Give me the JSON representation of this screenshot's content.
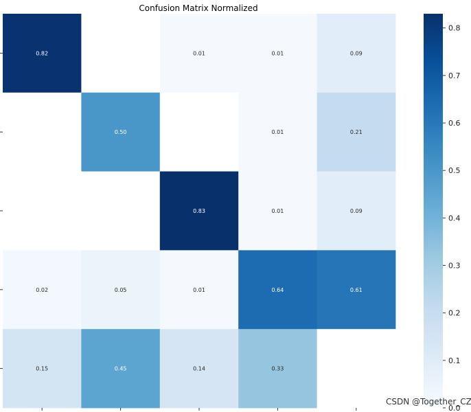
{
  "chart_data": {
    "type": "heatmap",
    "title": "Confusion Matrix Normalized",
    "rows": 5,
    "cols": 5,
    "values": [
      [
        0.82,
        null,
        0.01,
        0.01,
        0.09
      ],
      [
        null,
        0.5,
        null,
        0.01,
        0.21
      ],
      [
        null,
        null,
        0.83,
        0.01,
        0.09
      ],
      [
        0.02,
        0.05,
        0.01,
        0.64,
        0.61
      ],
      [
        0.15,
        0.45,
        0.14,
        0.33,
        null
      ]
    ],
    "labels": [
      [
        "0.82",
        "",
        "0.01",
        "0.01",
        "0.09"
      ],
      [
        "",
        "0.50",
        "",
        "0.01",
        "0.21"
      ],
      [
        "",
        "",
        "0.83",
        "0.01",
        "0.09"
      ],
      [
        "0.02",
        "0.05",
        "0.01",
        "0.64",
        "0.61"
      ],
      [
        "0.15",
        "0.45",
        "0.14",
        "0.33",
        ""
      ]
    ],
    "colorscale": "Blues",
    "vmin": 0.0,
    "vmax": 0.83,
    "colorbar_ticks": [
      "0.0",
      "0.1",
      "0.2",
      "0.3",
      "0.4",
      "0.5",
      "0.6",
      "0.7",
      "0.8"
    ],
    "grid": false,
    "colorbar_position": "right"
  },
  "watermark": "CSDN @Together_CZ"
}
